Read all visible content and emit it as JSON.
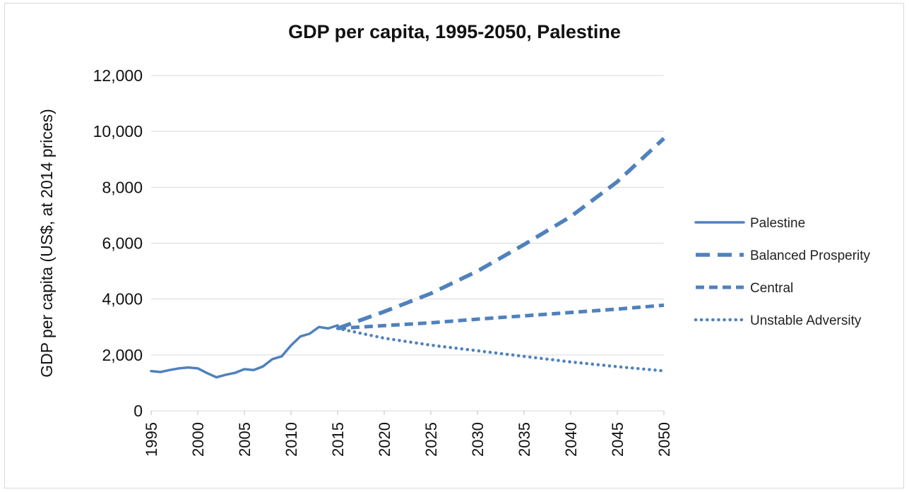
{
  "chart_data": {
    "type": "line",
    "title": "GDP per capita, 1995-2050, Palestine",
    "ylabel": "GDP per capita (US$, at 2014 prices)",
    "xlabel": "",
    "xlim": [
      1995,
      2050
    ],
    "ylim": [
      0,
      12000
    ],
    "yticks": [
      0,
      2000,
      4000,
      6000,
      8000,
      10000,
      12000
    ],
    "ytick_labels": [
      "0",
      "2,000",
      "4,000",
      "6,000",
      "8,000",
      "10,000",
      "12,000"
    ],
    "xticks": [
      1995,
      2000,
      2005,
      2010,
      2015,
      2020,
      2025,
      2030,
      2035,
      2040,
      2045,
      2050
    ],
    "xtick_labels": [
      "1995",
      "2000",
      "2005",
      "2010",
      "2015",
      "2020",
      "2025",
      "2030",
      "2035",
      "2040",
      "2045",
      "2050"
    ],
    "grid": true,
    "legend_position": "right",
    "line_color": "#4f81bd",
    "series": [
      {
        "name": "Palestine",
        "style": "solid",
        "x": [
          1995,
          1996,
          1997,
          1998,
          1999,
          2000,
          2001,
          2002,
          2003,
          2004,
          2005,
          2006,
          2007,
          2008,
          2009,
          2010,
          2011,
          2012,
          2013,
          2014,
          2015
        ],
        "values": [
          1420,
          1390,
          1460,
          1520,
          1550,
          1520,
          1350,
          1200,
          1290,
          1360,
          1490,
          1460,
          1590,
          1850,
          1950,
          2340,
          2660,
          2760,
          3000,
          2950,
          3060
        ]
      },
      {
        "name": "Balanced Prosperity",
        "style": "long-dash",
        "x": [
          2015,
          2020,
          2025,
          2030,
          2035,
          2040,
          2045,
          2050
        ],
        "values": [
          2950,
          3550,
          4200,
          5000,
          5950,
          6950,
          8200,
          9750
        ]
      },
      {
        "name": "Central",
        "style": "dash",
        "x": [
          2015,
          2020,
          2025,
          2030,
          2035,
          2040,
          2045,
          2050
        ],
        "values": [
          2950,
          3050,
          3150,
          3280,
          3400,
          3520,
          3640,
          3780
        ]
      },
      {
        "name": "Unstable Adversity",
        "style": "dot",
        "x": [
          2015,
          2020,
          2025,
          2030,
          2035,
          2040,
          2045,
          2050
        ],
        "values": [
          2950,
          2600,
          2350,
          2150,
          1950,
          1750,
          1580,
          1430
        ]
      }
    ]
  }
}
